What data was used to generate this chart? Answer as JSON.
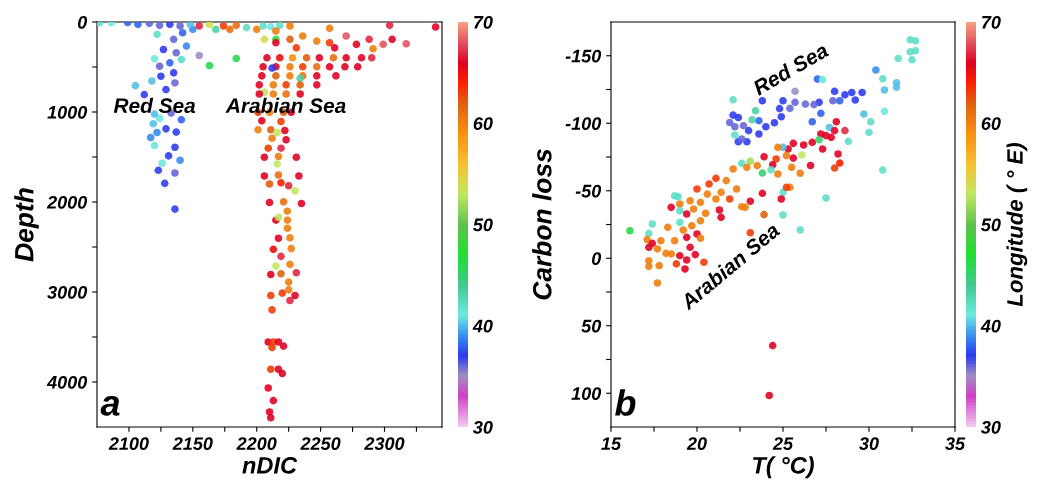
{
  "chart_data": [
    {
      "type": "scatter",
      "xlabel": "nDIC",
      "ylabel": "Depth",
      "marker": "circle",
      "xlim": [
        2075,
        2345
      ],
      "ylim": [
        4500,
        0
      ],
      "xticks": [
        2100,
        {
          "value": 2125,
          "label": null
        },
        2150,
        {
          "value": 2175,
          "label": null
        },
        2200,
        {
          "value": 2225,
          "label": null
        },
        2250,
        {
          "value": 2275,
          "label": null
        },
        2300,
        {
          "value": 2325,
          "label": null
        }
      ],
      "yticks": [
        0,
        {
          "value": 500,
          "label": null
        },
        1000,
        {
          "value": 1500,
          "label": null
        },
        2000,
        {
          "value": 2500,
          "label": null
        },
        3000,
        {
          "value": 3500,
          "label": null
        },
        4000
      ],
      "clim": [
        30,
        70
      ],
      "cticks": [
        30,
        40,
        50,
        60,
        70
      ],
      "annotations": [
        "Red Sea",
        "Arabian Sea",
        "a"
      ],
      "series": [
        {
          "x": [
            2136,
            2128,
            2136,
            2123,
            2126,
            2140,
            2131,
            2120,
            2136,
            2117,
            2122,
            2129,
            2137,
            2119,
            2141,
            2124,
            2120,
            2133,
            2105,
            2118,
            2112,
            2129,
            2136,
            2125,
            2135,
            2124,
            2132,
            2141,
            2120,
            2137,
            2127,
            2145,
            2155,
            2163,
            2184,
            2135,
            2122,
            2142,
            2150,
            2077,
            2086,
            2099,
            2107,
            2116,
            2124,
            2132,
            2140,
            2148,
            2155,
            2163,
            2168,
            2174,
            2179,
            2184,
            2192,
            2200,
            2205,
            2211,
            2218,
            2226,
            2215,
            2215,
            2206,
            2257,
            2304,
            2340,
            2215,
            2226,
            2236,
            2247,
            2257,
            2270,
            2278,
            2288,
            2299,
            2306,
            2317,
            2291,
            2261,
            2231,
            2208,
            2218,
            2228,
            2239,
            2249,
            2260,
            2270,
            2282,
            2290,
            2279,
            2205,
            2215,
            2226,
            2236,
            2247,
            2257,
            2269,
            2212,
            2204,
            2215,
            2226,
            2236,
            2247,
            2262,
            2234,
            2202,
            2213,
            2223,
            2234,
            2247,
            2206,
            2202,
            2213,
            2223,
            2234,
            2201,
            2210,
            2221,
            2227,
            2204,
            2219,
            2201,
            2211,
            2222,
            2216,
            2212,
            2223,
            2209,
            2219,
            2206,
            2217,
            2231,
            2216,
            2206,
            2217,
            2233,
            2210,
            2219,
            2225,
            2230,
            2210,
            2221,
            2235,
            2224,
            2215,
            2224,
            2217,
            2224,
            2217,
            2226,
            2213,
            2227,
            2219,
            2215,
            2226,
            2211,
            2219,
            2231,
            2225,
            2225,
            2220,
            2230,
            2211,
            2226,
            2212,
            2209,
            2213,
            2217,
            2212,
            2221,
            2211,
            2217,
            2220,
            2209,
            2213,
            2210,
            2211
          ],
          "values": [
            2079,
            1793,
            1678,
            1648,
            1570,
            1536,
            1488,
            1373,
            1391,
            1283,
            1228,
            1187,
            1224,
            1131,
            1086,
            1071,
            1023,
            1012,
            707,
            655,
            807,
            751,
            677,
            603,
            565,
            491,
            454,
            417,
            409,
            342,
            305,
            268,
            372,
            484,
            405,
            193,
            138,
            119,
            82,
            7,
            7,
            5,
            26,
            15,
            37,
            26,
            45,
            26,
            45,
            26,
            82,
            45,
            82,
            37,
            63,
            82,
            45,
            52,
            37,
            45,
            100,
            193,
            193,
            71,
            37,
            56,
            231,
            193,
            156,
            212,
            231,
            156,
            249,
            193,
            249,
            193,
            242,
            298,
            287,
            287,
            398,
            398,
            398,
            398,
            398,
            398,
            398,
            398,
            398,
            498,
            498,
            498,
            498,
            498,
            498,
            498,
            498,
            513,
            599,
            599,
            599,
            599,
            599,
            599,
            625,
            699,
            699,
            699,
            699,
            699,
            781,
            800,
            800,
            800,
            800,
            1004,
            1004,
            1004,
            1004,
            1097,
            1105,
            1198,
            1198,
            1205,
            1228,
            1291,
            1309,
            1402,
            1402,
            1503,
            1495,
            1503,
            1577,
            1711,
            1700,
            1711,
            1800,
            1786,
            1819,
            1875,
            2005,
            1998,
            2016,
            2102,
            2202,
            2202,
            2169,
            2292,
            2403,
            2399,
            2526,
            2518,
            2604,
            2712,
            2693,
            2805,
            2797,
            2786,
            2890,
            2976,
            3013,
            3039,
            3039,
            3095,
            3199,
            3556,
            3556,
            3556,
            3616,
            3601,
            3858,
            3858,
            3906,
            4066,
            4207,
            4334,
            4397
          ],
          "cvalues": [
            37,
            37,
            36,
            37,
            41,
            39,
            37,
            41,
            37,
            39,
            39,
            37,
            37,
            40,
            38,
            41,
            40,
            36,
            40,
            40,
            37,
            37,
            36,
            37,
            37,
            36,
            38,
            42,
            41,
            36,
            37,
            39,
            35,
            46,
            46,
            36,
            42,
            38,
            39,
            42,
            41,
            38,
            38,
            36,
            36,
            37,
            36,
            40,
            67,
            54,
            43,
            63,
            61,
            61,
            42,
            60,
            42,
            41,
            42,
            60,
            60,
            48,
            54,
            60,
            67,
            66,
            66,
            62,
            60,
            60,
            63,
            68,
            66,
            67,
            68,
            66,
            68,
            60,
            66,
            63,
            66,
            65,
            59,
            62,
            66,
            61,
            66,
            66,
            67,
            66,
            66,
            66,
            60,
            63,
            61,
            66,
            66,
            37,
            66,
            62,
            60,
            61,
            66,
            66,
            43,
            66,
            60,
            63,
            62,
            66,
            53,
            66,
            60,
            61,
            66,
            63,
            60,
            62,
            66,
            66,
            63,
            60,
            62,
            66,
            53,
            60,
            66,
            63,
            67,
            66,
            60,
            66,
            53,
            66,
            61,
            66,
            62,
            64,
            67,
            53,
            66,
            61,
            66,
            60,
            66,
            60,
            53,
            60,
            66,
            60,
            65,
            60,
            67,
            53,
            60,
            66,
            62,
            67,
            60,
            60,
            63,
            66,
            63,
            67,
            63,
            66,
            63,
            66,
            63,
            66,
            63,
            66,
            66,
            66,
            66,
            66,
            66
          ]
        }
      ]
    },
    {
      "type": "scatter",
      "xlabel": "T( °C)",
      "ylabel": "Carbon loss",
      "clabel": "Longitude ( ° E)",
      "marker": "circle",
      "xlim": [
        15,
        35
      ],
      "ylim": [
        125,
        -175
      ],
      "xticks": [
        15,
        {
          "value": 17.5,
          "label": null
        },
        20,
        {
          "value": 22.5,
          "label": null
        },
        25,
        {
          "value": 27.5,
          "label": null
        },
        30,
        {
          "value": 32.5,
          "label": null
        },
        35
      ],
      "yticks": [
        -150,
        {
          "value": -125,
          "label": null
        },
        -100,
        {
          "value": -75,
          "label": null
        },
        -50,
        {
          "value": -25,
          "label": null
        },
        0,
        {
          "value": 25,
          "label": null
        },
        50,
        {
          "value": 75,
          "label": null
        },
        100
      ],
      "clim": [
        30,
        70
      ],
      "cticks": [
        30,
        40,
        50,
        60,
        70
      ],
      "annotations": [
        "Red Sea",
        "Arabian Sea",
        "b"
      ],
      "series": [
        {
          "x": [
            32.4,
            32.7,
            32.4,
            32.7,
            31.7,
            32.5,
            30.4,
            30.8,
            31.6,
            31.6,
            30.9,
            30.9,
            29.7,
            30.1,
            30.0,
            28.8,
            30.8,
            27.5,
            27.0,
            27.3,
            25.7,
            28.0,
            29.0,
            29.6,
            28.6,
            29.2,
            28.3,
            27.9,
            27.1,
            26.3,
            26.8,
            25.0,
            25.7,
            23.8,
            24.8,
            25.4,
            27.2,
            26.7,
            24.9,
            24.5,
            24.0,
            23.6,
            23.4,
            23.2,
            22.1,
            22.1,
            22.4,
            21.9,
            22.2,
            22.7,
            23.0,
            23.6,
            22.4,
            22.9,
            22.6,
            22.2,
            27.7,
            28.1,
            28.6,
            28.0,
            27.8,
            27.5,
            27.2,
            27.1,
            27.3,
            28.2,
            28.3,
            28.0,
            26.7,
            26.2,
            25.6,
            25.3,
            25.0,
            24.7,
            26.1,
            25.6,
            25.2,
            24.6,
            23.9,
            24.4,
            23.1,
            22.6,
            24.3,
            23.8,
            23.5,
            22.9,
            22.1,
            26.0,
            25.5,
            24.7,
            26.6,
            25.4,
            25.0,
            24.9,
            25.2,
            23.8,
            23.1,
            22.6,
            22.3,
            21.7,
            21.1,
            20.7,
            20.0,
            21.4,
            20.6,
            19.6,
            19.0,
            20.2,
            21.1,
            21.9,
            18.7,
            18.9,
            18.5,
            19.0,
            19.4,
            19.8,
            20.5,
            21.3,
            21.4,
            20.2,
            19.7,
            19.0,
            19.2,
            18.3,
            17.4,
            17.2,
            16.1,
            17.1,
            17.4,
            17.9,
            18.7,
            19.4,
            20.0,
            20.2,
            17.2,
            17.7,
            18.2,
            18.5,
            19.0,
            19.4,
            19.9,
            19.6,
            17.2,
            17.2,
            17.8,
            19.3,
            18.8,
            20.4,
            17.7,
            25.0,
            23.9,
            23.1,
            26.0,
            22.8,
            24.4,
            24.2
          ],
          "values": [
            -161.8,
            -161,
            -153,
            -153.7,
            -148,
            -147,
            -139.4,
            -133,
            -130,
            -126.6,
            -124.6,
            -108.8,
            -106.8,
            -101,
            -93.2,
            -86.6,
            -65.3,
            -44.6,
            -132.7,
            -132.3,
            -123.6,
            -123.6,
            -122.8,
            -122.8,
            -121,
            -117.2,
            -116.7,
            -116.7,
            -115.5,
            -114.2,
            -113.8,
            -116.7,
            -115.5,
            -116.7,
            -110.8,
            -111,
            -107.3,
            -101.1,
            -104.8,
            -100.4,
            -97.4,
            -101.9,
            -109.3,
            -102.6,
            -117.4,
            -106,
            -104.3,
            -100.6,
            -97.4,
            -98.2,
            -94.5,
            -92,
            -86.3,
            -86.3,
            -88.3,
            -91.3,
            -96.9,
            -101.1,
            -94.5,
            -94.5,
            -89.5,
            -90.8,
            -92,
            -87.8,
            -80.9,
            -77.2,
            -70.5,
            -66.8,
            -85.8,
            -83.9,
            -85.1,
            -80.9,
            -82.1,
            -82.1,
            -76.5,
            -74.2,
            -76,
            -73.5,
            -75.2,
            -69.3,
            -71.8,
            -70.3,
            -65.5,
            -63.1,
            -68.6,
            -67.3,
            -66.1,
            -63,
            -67.3,
            -62.4,
            -68.7,
            -52.5,
            -48.8,
            -43.9,
            -52.5,
            -48.1,
            -42.2,
            -38.2,
            -51.3,
            -57.5,
            -59.2,
            -55,
            -51.3,
            -48.8,
            -47.5,
            -42.6,
            -40.2,
            -41.4,
            -43.9,
            -43.9,
            -46.3,
            -45.6,
            -37.7,
            -35.2,
            -32.8,
            -36.5,
            -33.3,
            -35.7,
            -30.3,
            -27.8,
            -24.1,
            -26.6,
            -20.9,
            -22.9,
            -25.4,
            -18.4,
            -20.4,
            -13.8,
            -11,
            -13,
            -13,
            -15.5,
            -18,
            -14.8,
            -8.1,
            -6.9,
            -3.6,
            -3.2,
            -1.9,
            1.3,
            -2.7,
            -8.1,
            1.8,
            6,
            5.5,
            8,
            4.2,
            3,
            18.3,
            -32,
            -32.3,
            -18.9,
            -20.9,
            -37.7,
            64.7,
            101.7
          ],
          "cvalues": [
            42,
            42,
            42,
            42,
            42,
            42,
            39,
            42,
            40,
            40,
            40,
            41,
            40,
            42,
            42,
            42,
            42,
            42,
            38,
            41,
            35,
            37,
            37,
            37,
            37,
            37,
            38,
            36,
            37,
            36,
            36,
            37,
            36,
            37,
            37,
            36,
            38,
            38,
            37,
            37,
            37,
            38,
            43,
            43,
            42,
            37,
            37,
            36,
            36,
            36,
            37,
            37,
            37,
            37,
            36,
            42,
            40,
            66,
            67,
            66,
            66,
            66,
            66,
            45,
            66,
            66,
            64,
            63,
            66,
            66,
            66,
            66,
            40,
            60,
            53,
            66,
            60,
            63,
            66,
            66,
            52,
            42,
            42,
            45,
            60,
            60,
            60,
            60,
            60,
            60,
            66,
            60,
            42,
            66,
            63,
            66,
            66,
            60,
            60,
            60,
            63,
            63,
            63,
            60,
            60,
            60,
            60,
            60,
            60,
            63,
            42,
            42,
            66,
            42,
            66,
            60,
            60,
            66,
            66,
            60,
            60,
            42,
            60,
            60,
            42,
            42,
            46,
            60,
            66,
            60,
            60,
            66,
            66,
            60,
            66,
            60,
            60,
            60,
            66,
            66,
            66,
            66,
            60,
            60,
            60,
            66,
            63,
            63,
            60,
            42,
            62,
            63,
            42,
            60,
            66,
            66
          ]
        }
      ]
    }
  ]
}
